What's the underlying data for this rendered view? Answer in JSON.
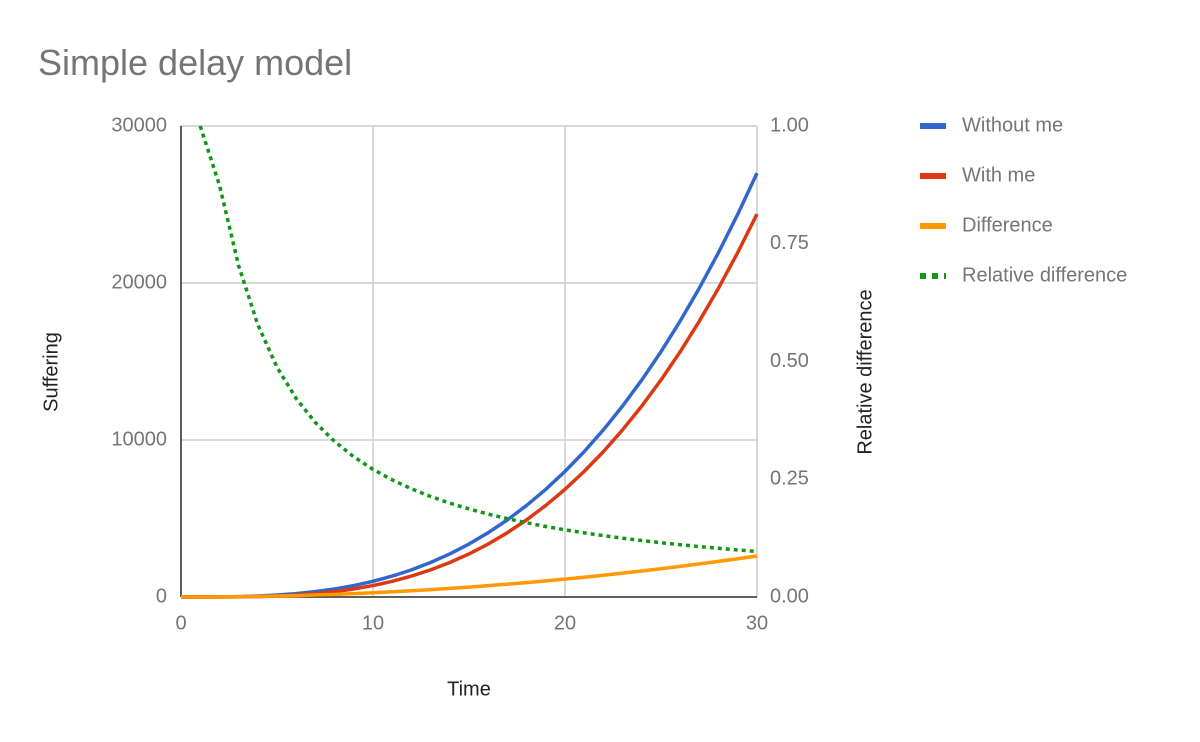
{
  "chart_data": {
    "type": "line",
    "title": "Simple delay model",
    "x_label": "Time",
    "y_label": "Suffering",
    "y2_label": "Relative difference",
    "x": [
      0,
      1,
      2,
      3,
      4,
      5,
      6,
      7,
      8,
      9,
      10,
      11,
      12,
      13,
      14,
      15,
      16,
      17,
      18,
      19,
      20,
      21,
      22,
      23,
      24,
      25,
      26,
      27,
      28,
      29,
      30
    ],
    "xlim": [
      0,
      30
    ],
    "xticks": [
      0,
      10,
      20,
      30
    ],
    "ylim": [
      0,
      30000
    ],
    "yticks": [
      0,
      10000,
      20000,
      30000
    ],
    "y2lim": [
      0,
      1
    ],
    "y2ticks": [
      {
        "value": 0,
        "label": "0.00"
      },
      {
        "value": 0.25,
        "label": "0.25"
      },
      {
        "value": 0.5,
        "label": "0.50"
      },
      {
        "value": 0.75,
        "label": "0.75"
      },
      {
        "value": 1,
        "label": "1.00"
      }
    ],
    "grid": true,
    "legend": "right",
    "series": [
      {
        "name": "Without me",
        "color": "#3366cc",
        "values": [
          0,
          1,
          8,
          27,
          64,
          125,
          216,
          343,
          512,
          729,
          1000,
          1331,
          1728,
          2197,
          2744,
          3375,
          4096,
          4913,
          5832,
          6859,
          8000,
          9261,
          10648,
          12167,
          13824,
          15625,
          17576,
          19683,
          21952,
          24389,
          27000
        ]
      },
      {
        "name": "With me",
        "color": "#dc3912",
        "values": [
          0,
          0,
          1,
          8,
          27,
          64,
          125,
          216,
          343,
          512,
          729,
          1000,
          1331,
          1728,
          2197,
          2744,
          3375,
          4096,
          4913,
          5832,
          6859,
          8000,
          9261,
          10648,
          12167,
          13824,
          15625,
          17576,
          19683,
          21952,
          24389
        ]
      },
      {
        "name": "Difference",
        "color": "#ff9900",
        "values": [
          0,
          1,
          7,
          19,
          37,
          61,
          91,
          127,
          169,
          217,
          271,
          331,
          397,
          469,
          547,
          631,
          721,
          817,
          919,
          1027,
          1141,
          1261,
          1387,
          1519,
          1657,
          1801,
          1951,
          2107,
          2269,
          2437,
          2611
        ]
      },
      {
        "name": "Relative difference",
        "color": "#109618",
        "axis": "y2",
        "line_style": "dotted",
        "values": [
          null,
          1,
          0.875,
          0.7037,
          0.5781,
          0.488,
          0.4213,
          0.3703,
          0.3301,
          0.2977,
          0.271,
          0.2487,
          0.2297,
          0.2135,
          0.1993,
          0.187,
          0.176,
          0.1663,
          0.1576,
          0.1497,
          0.1426,
          0.1362,
          0.1303,
          0.1248,
          0.1199,
          0.1153,
          0.111,
          0.107,
          0.1034,
          0.0999,
          0.0967
        ]
      }
    ]
  }
}
